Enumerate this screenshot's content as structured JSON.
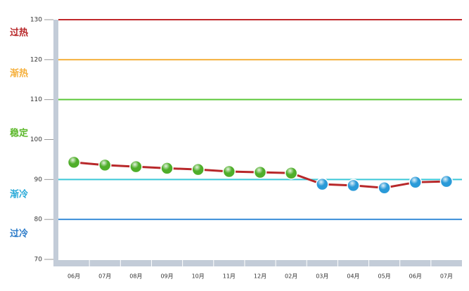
{
  "chart_data": {
    "type": "line",
    "categories": [
      "06月",
      "07月",
      "08月",
      "09月",
      "10月",
      "11月",
      "12月",
      "02月",
      "03月",
      "04月",
      "05月",
      "06月",
      "07月"
    ],
    "series": [
      {
        "color": "#b8282a",
        "values": [
          94.3,
          93.6,
          93.2,
          92.8,
          92.5,
          92.0,
          91.8,
          91.6,
          88.8,
          88.5,
          87.9,
          89.3,
          89.5
        ],
        "point_colors": [
          "#4fae2a",
          "#4fae2a",
          "#4fae2a",
          "#4fae2a",
          "#4fae2a",
          "#4fae2a",
          "#4fae2a",
          "#4fae2a",
          "#2a9ad8",
          "#2a9ad8",
          "#2a9ad8",
          "#2a9ad8",
          "#2a9ad8"
        ]
      }
    ],
    "ylim": [
      70,
      130
    ],
    "yticks": [
      70,
      80,
      90,
      100,
      110,
      120,
      130
    ],
    "reference_lines": [
      {
        "value": 130,
        "color": "#c0282a"
      },
      {
        "value": 120,
        "color": "#f5b03c"
      },
      {
        "value": 110,
        "color": "#5cc83a"
      },
      {
        "value": 90,
        "color": "#3cc8d8"
      },
      {
        "value": 80,
        "color": "#3a8ed8"
      }
    ],
    "zones": [
      {
        "label": "过热",
        "color": "#b8282a"
      },
      {
        "label": "渐热",
        "color": "#f5b03c"
      },
      {
        "label": "稳定",
        "color": "#5cb82a"
      },
      {
        "label": "渐冷",
        "color": "#2aaad8"
      },
      {
        "label": "过冷",
        "color": "#2a7ac8"
      }
    ]
  }
}
